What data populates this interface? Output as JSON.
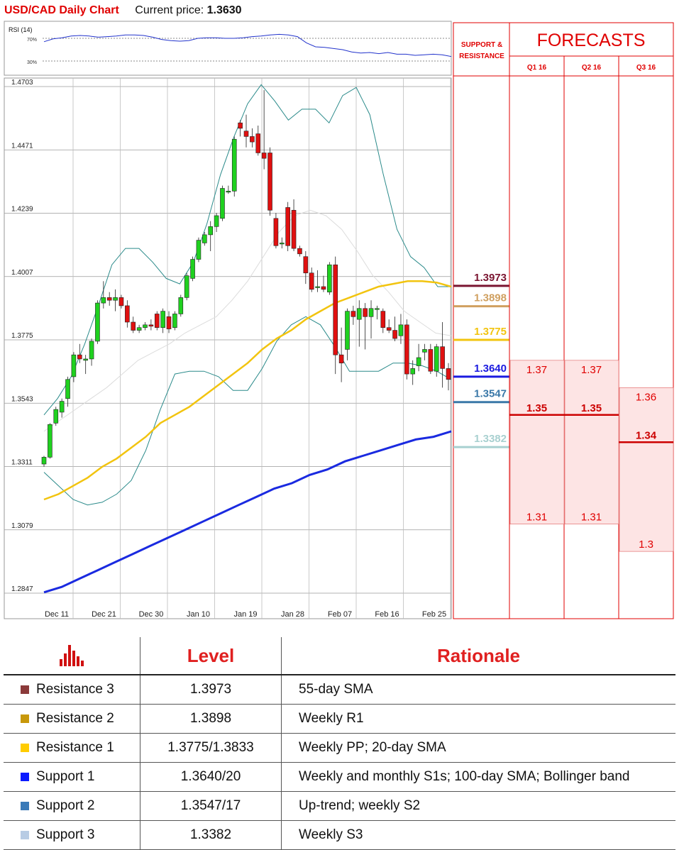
{
  "header": {
    "title": "USD/CAD Daily Chart",
    "current_label": "Current price:",
    "current_value": "1.3630"
  },
  "rsi": {
    "label": "RSI (14)",
    "level70": "70%",
    "level30": "30%",
    "values": [
      64,
      69,
      71,
      74,
      75,
      74,
      72,
      73,
      74,
      76,
      76,
      75,
      72,
      68,
      66,
      65,
      66,
      70,
      71,
      71,
      70,
      70,
      71,
      73,
      74,
      76,
      77,
      76,
      73,
      62,
      55,
      54,
      52,
      50,
      46,
      44,
      45,
      43,
      45,
      42,
      42,
      40,
      41,
      42,
      41,
      38
    ]
  },
  "colors": {
    "bull": "#1fd11f",
    "bear": "#e01010",
    "sma55": "#f2c40f",
    "sma100": "#1a2ae0",
    "bb": "#2a8a8a",
    "sma20": "#d0d0d0",
    "red": "#e00000",
    "forecast_fill": "#fde4e4"
  },
  "chart_data": {
    "type": "candlestick",
    "title": "USD/CAD Daily Chart",
    "x_labels": [
      "Dec 11",
      "Dec 21",
      "Dec 30",
      "Jan 10",
      "Jan 19",
      "Jan 28",
      "Feb 07",
      "Feb 16",
      "Feb 25"
    ],
    "y_ticks": [
      "1.4703",
      "1.4471",
      "1.4239",
      "1.4007",
      "1.3775",
      "1.3543",
      "1.3311",
      "1.3079",
      "1.2847"
    ],
    "ylim": [
      1.2847,
      1.4703
    ],
    "ohlc": [
      [
        1.332,
        1.335,
        1.331,
        1.3345
      ],
      [
        1.3345,
        1.347,
        1.334,
        1.3465
      ],
      [
        1.347,
        1.353,
        1.346,
        1.352
      ],
      [
        1.351,
        1.356,
        1.349,
        1.355
      ],
      [
        1.356,
        1.364,
        1.353,
        1.363
      ],
      [
        1.364,
        1.373,
        1.362,
        1.372
      ],
      [
        1.372,
        1.376,
        1.369,
        1.3705
      ],
      [
        1.37,
        1.372,
        1.365,
        1.3705
      ],
      [
        1.3705,
        1.378,
        1.368,
        1.377
      ],
      [
        1.377,
        1.392,
        1.376,
        1.391
      ],
      [
        1.391,
        1.399,
        1.389,
        1.393
      ],
      [
        1.393,
        1.395,
        1.39,
        1.392
      ],
      [
        1.392,
        1.396,
        1.388,
        1.393
      ],
      [
        1.393,
        1.394,
        1.389,
        1.39
      ],
      [
        1.39,
        1.392,
        1.382,
        1.384
      ],
      [
        1.384,
        1.386,
        1.38,
        1.381
      ],
      [
        1.381,
        1.383,
        1.38,
        1.382
      ],
      [
        1.382,
        1.384,
        1.381,
        1.383
      ],
      [
        1.383,
        1.385,
        1.381,
        1.3825
      ],
      [
        1.387,
        1.388,
        1.381,
        1.382
      ],
      [
        1.382,
        1.389,
        1.38,
        1.388
      ],
      [
        1.386,
        1.388,
        1.38,
        1.3815
      ],
      [
        1.382,
        1.388,
        1.381,
        1.387
      ],
      [
        1.387,
        1.394,
        1.386,
        1.393
      ],
      [
        1.393,
        1.402,
        1.392,
        1.401
      ],
      [
        1.4,
        1.408,
        1.399,
        1.407
      ],
      [
        1.407,
        1.415,
        1.406,
        1.414
      ],
      [
        1.413,
        1.417,
        1.412,
        1.416
      ],
      [
        1.416,
        1.421,
        1.41,
        1.419
      ],
      [
        1.419,
        1.424,
        1.417,
        1.423
      ],
      [
        1.422,
        1.434,
        1.421,
        1.433
      ],
      [
        1.432,
        1.434,
        1.431,
        1.432
      ],
      [
        1.432,
        1.452,
        1.43,
        1.451
      ],
      [
        1.457,
        1.458,
        1.452,
        1.455
      ],
      [
        1.454,
        1.46,
        1.448,
        1.452
      ],
      [
        1.452,
        1.455,
        1.448,
        1.45
      ],
      [
        1.453,
        1.456,
        1.445,
        1.446
      ],
      [
        1.446,
        1.469,
        1.44,
        1.444
      ],
      [
        1.446,
        1.448,
        1.423,
        1.425
      ],
      [
        1.422,
        1.424,
        1.411,
        1.412
      ],
      [
        1.413,
        1.415,
        1.411,
        1.413
      ],
      [
        1.426,
        1.428,
        1.41,
        1.412
      ],
      [
        1.425,
        1.429,
        1.41,
        1.411
      ],
      [
        1.411,
        1.412,
        1.408,
        1.409
      ],
      [
        1.408,
        1.41,
        1.398,
        1.402
      ],
      [
        1.402,
        1.404,
        1.395,
        1.396
      ],
      [
        1.397,
        1.403,
        1.395,
        1.397
      ],
      [
        1.397,
        1.401,
        1.395,
        1.396
      ],
      [
        1.395,
        1.406,
        1.394,
        1.405
      ],
      [
        1.405,
        1.408,
        1.365,
        1.372
      ],
      [
        1.372,
        1.382,
        1.362,
        1.369
      ],
      [
        1.374,
        1.389,
        1.37,
        1.388
      ],
      [
        1.388,
        1.39,
        1.383,
        1.386
      ],
      [
        1.385,
        1.392,
        1.375,
        1.389
      ],
      [
        1.389,
        1.391,
        1.374,
        1.386
      ],
      [
        1.386,
        1.392,
        1.378,
        1.389
      ],
      [
        1.389,
        1.39,
        1.385,
        1.389
      ],
      [
        1.388,
        1.389,
        1.38,
        1.382
      ],
      [
        1.382,
        1.385,
        1.38,
        1.381
      ],
      [
        1.381,
        1.386,
        1.377,
        1.378
      ],
      [
        1.379,
        1.387,
        1.376,
        1.383
      ],
      [
        1.383,
        1.385,
        1.363,
        1.365
      ],
      [
        1.365,
        1.37,
        1.361,
        1.367
      ],
      [
        1.368,
        1.376,
        1.366,
        1.371
      ],
      [
        1.373,
        1.376,
        1.37,
        1.374
      ],
      [
        1.374,
        1.376,
        1.365,
        1.366
      ],
      [
        1.366,
        1.376,
        1.364,
        1.375
      ],
      [
        1.375,
        1.384,
        1.36,
        1.367
      ],
      [
        1.367,
        1.369,
        1.359,
        1.363
      ]
    ],
    "sma55": [
      1.319,
      1.321,
      1.324,
      1.327,
      1.331,
      1.334,
      1.338,
      1.342,
      1.347,
      1.35,
      1.353,
      1.357,
      1.361,
      1.365,
      1.369,
      1.374,
      1.378,
      1.381,
      1.385,
      1.388,
      1.391,
      1.393,
      1.395,
      1.397,
      1.398,
      1.399,
      1.399,
      1.3985,
      1.397
    ],
    "sma100": [
      1.285,
      1.287,
      1.29,
      1.293,
      1.296,
      1.299,
      1.302,
      1.305,
      1.308,
      1.311,
      1.314,
      1.317,
      1.32,
      1.323,
      1.325,
      1.328,
      1.33,
      1.333,
      1.335,
      1.337,
      1.339,
      1.341,
      1.342,
      1.344
    ],
    "bb_upper": [
      1.35,
      1.356,
      1.364,
      1.376,
      1.39,
      1.405,
      1.411,
      1.411,
      1.406,
      1.4,
      1.398,
      1.406,
      1.42,
      1.438,
      1.452,
      1.464,
      1.471,
      1.465,
      1.458,
      1.462,
      1.462,
      1.457,
      1.467,
      1.47,
      1.46,
      1.438,
      1.418,
      1.408,
      1.404,
      1.397,
      1.397
    ],
    "bb_lower": [
      1.329,
      1.324,
      1.319,
      1.317,
      1.318,
      1.321,
      1.326,
      1.337,
      1.352,
      1.365,
      1.366,
      1.366,
      1.364,
      1.359,
      1.359,
      1.367,
      1.377,
      1.383,
      1.386,
      1.383,
      1.375,
      1.366,
      1.366,
      1.366,
      1.369,
      1.369,
      1.368,
      1.366,
      1.363
    ],
    "sma20": [
      1.344,
      1.348,
      1.352,
      1.356,
      1.36,
      1.365,
      1.37,
      1.373,
      1.376,
      1.38,
      1.383,
      1.386,
      1.392,
      1.399,
      1.408,
      1.417,
      1.423,
      1.425,
      1.423,
      1.418,
      1.41,
      1.401,
      1.395,
      1.388,
      1.384,
      1.38,
      1.379
    ]
  },
  "sr": {
    "header": [
      "SUPPORT &",
      "RESISTANCE"
    ],
    "levels": [
      {
        "label": "1.3973",
        "value": 1.3973,
        "color": "#7a1430"
      },
      {
        "label": "1.3898",
        "value": 1.3898,
        "color": "#d0a060"
      },
      {
        "label": "1.3775",
        "value": 1.3775,
        "color": "#f2c40f"
      },
      {
        "label": "1.3640",
        "value": 1.364,
        "color": "#1a1ae0"
      },
      {
        "label": "1.3547",
        "value": 1.3547,
        "color": "#3a78a8"
      },
      {
        "label": "1.3382",
        "value": 1.3382,
        "color": "#a8d0d0"
      }
    ]
  },
  "forecasts": {
    "title": "FORECASTS",
    "quarters": [
      "Q1 16",
      "Q2 16",
      "Q3 16"
    ],
    "items": [
      {
        "high": "1.37",
        "mid": "1.35",
        "low": "1.31"
      },
      {
        "high": "1.37",
        "mid": "1.35",
        "low": "1.31"
      },
      {
        "high": "1.36",
        "mid": "1.34",
        "low": "1.3"
      }
    ]
  },
  "table": {
    "headers": {
      "level": "Level",
      "rationale": "Rationale"
    },
    "rows": [
      {
        "name": "Resistance 3",
        "level": "1.3973",
        "rationale": "55-day SMA",
        "color": "#8b3a3a"
      },
      {
        "name": "Resistance 2",
        "level": "1.3898",
        "rationale": "Weekly R1",
        "color": "#c8980a"
      },
      {
        "name": "Resistance 1",
        "level": "1.3775/1.3833",
        "rationale": "Weekly PP; 20-day SMA",
        "color": "#ffcc00"
      },
      {
        "name": "Support 1",
        "level": "1.3640/20",
        "rationale": "Weekly and monthly S1s; 100-day SMA; Bollinger band",
        "color": "#0a1aff"
      },
      {
        "name": "Support 2",
        "level": "1.3547/17",
        "rationale": "Up-trend; weekly S2",
        "color": "#3a7ab8"
      },
      {
        "name": "Support 3",
        "level": "1.3382",
        "rationale": "Weekly S3",
        "color": "#b8cce4"
      }
    ]
  }
}
